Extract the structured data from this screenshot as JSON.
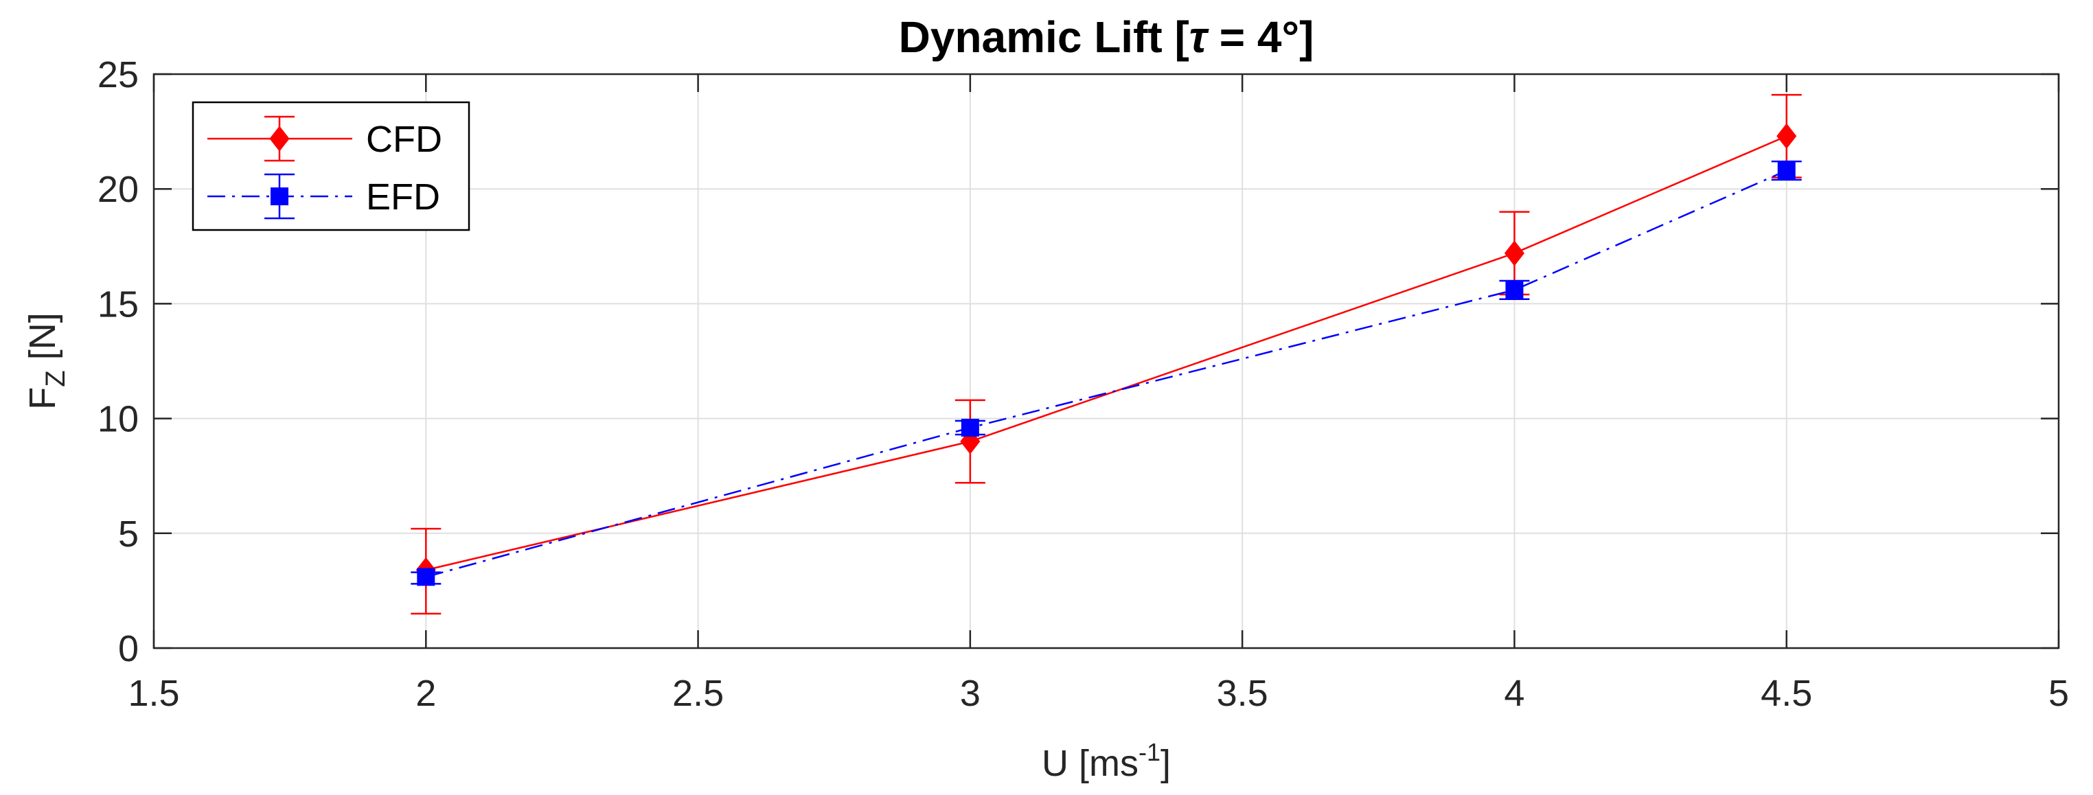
{
  "chart_data": {
    "type": "line",
    "title": {
      "prefix": "Dynamic Lift [",
      "symbol": "τ",
      "suffix": " = 4°]"
    },
    "xlabel": {
      "main": "U [ms",
      "sup": "-1",
      "end": "]"
    },
    "ylabel": {
      "main": "F",
      "sub": "Z",
      "end": " [N]"
    },
    "xlim": [
      1.5,
      5
    ],
    "ylim": [
      0,
      25
    ],
    "xticks": [
      1.5,
      2,
      2.5,
      3,
      3.5,
      4,
      4.5,
      5
    ],
    "xtick_labels": [
      "1.5",
      "2",
      "2.5",
      "3",
      "3.5",
      "4",
      "4.5",
      "5"
    ],
    "yticks": [
      0,
      5,
      10,
      15,
      20,
      25
    ],
    "ytick_labels": [
      "0",
      "5",
      "10",
      "15",
      "20",
      "25"
    ],
    "grid": true,
    "legend_position": "top-left",
    "series": [
      {
        "name": "CFD",
        "color": "#ff0000",
        "line_style": "solid",
        "marker": "diamond",
        "x": [
          2,
          3,
          4,
          4.5
        ],
        "y": [
          3.4,
          9.0,
          17.2,
          22.3
        ],
        "err_low": [
          1.5,
          7.2,
          15.4,
          20.5
        ],
        "err_high": [
          5.2,
          10.8,
          19.0,
          24.1
        ]
      },
      {
        "name": "EFD",
        "color": "#0000ff",
        "line_style": "dash-dot",
        "marker": "square",
        "x": [
          2,
          3,
          4,
          4.5
        ],
        "y": [
          3.1,
          9.6,
          15.6,
          20.8
        ],
        "err_low": [
          2.8,
          9.3,
          15.2,
          20.4
        ],
        "err_high": [
          3.3,
          9.9,
          16.0,
          21.2
        ]
      }
    ]
  }
}
